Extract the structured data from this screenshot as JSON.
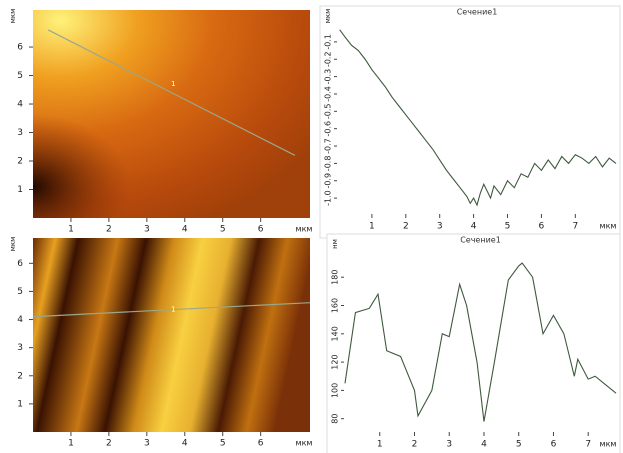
{
  "chart_data": [
    {
      "type": "heatmap",
      "x_label": "мкм",
      "y_label": "мкм",
      "xlim": [
        0,
        7.3
      ],
      "ylim": [
        0,
        7.3
      ],
      "xticks": [
        1,
        2,
        3,
        4,
        5,
        6
      ],
      "yticks": [
        1,
        2,
        3,
        4,
        5,
        6
      ],
      "section": {
        "x": [
          0.4,
          6.9
        ],
        "y": [
          6.6,
          2.2
        ],
        "label": "1",
        "label_x": 3.7,
        "label_y": 4.7,
        "color": "#9aa88a"
      }
    },
    {
      "type": "line",
      "title": "Сечение1",
      "x_label": "мкм",
      "y_label": "мкм",
      "xlim": [
        0,
        8.2
      ],
      "ylim": [
        -1.08,
        -0.02
      ],
      "xticks": [
        1,
        2,
        3,
        4,
        5,
        6,
        7
      ],
      "yticks": [
        {
          "value": -1,
          "label": "-1.0"
        },
        -0.9,
        -0.8,
        -0.7,
        -0.6,
        -0.5,
        -0.4,
        -0.3,
        -0.2,
        -0.1
      ],
      "color": "#3d5a3d",
      "x": [
        0.05,
        0.2,
        0.4,
        0.6,
        0.8,
        1.0,
        1.2,
        1.4,
        1.6,
        1.8,
        2.0,
        2.2,
        2.4,
        2.6,
        2.8,
        3.0,
        3.2,
        3.4,
        3.6,
        3.8,
        3.9,
        4.0,
        4.1,
        4.2,
        4.3,
        4.4,
        4.5,
        4.6,
        4.8,
        5.0,
        5.2,
        5.4,
        5.6,
        5.8,
        6.0,
        6.2,
        6.4,
        6.6,
        6.8,
        7.0,
        7.2,
        7.4,
        7.6,
        7.8,
        8.0,
        8.2
      ],
      "values": [
        -0.03,
        -0.07,
        -0.12,
        -0.15,
        -0.2,
        -0.26,
        -0.31,
        -0.36,
        -0.42,
        -0.47,
        -0.52,
        -0.57,
        -0.62,
        -0.67,
        -0.72,
        -0.78,
        -0.84,
        -0.89,
        -0.94,
        -0.99,
        -1.03,
        -1.0,
        -1.04,
        -0.97,
        -0.92,
        -0.96,
        -1.0,
        -0.93,
        -0.98,
        -0.9,
        -0.94,
        -0.86,
        -0.88,
        -0.8,
        -0.84,
        -0.78,
        -0.83,
        -0.76,
        -0.8,
        -0.75,
        -0.77,
        -0.8,
        -0.76,
        -0.82,
        -0.77,
        -0.8
      ]
    },
    {
      "type": "heatmap",
      "x_label": "мкм",
      "y_label": "мкм",
      "xlim": [
        0,
        7.3
      ],
      "ylim": [
        0,
        6.9
      ],
      "xticks": [
        1,
        2,
        3,
        4,
        5,
        6
      ],
      "yticks": [
        1,
        2,
        3,
        4,
        5,
        6
      ],
      "section": {
        "x": [
          0,
          7.3
        ],
        "y": [
          4.1,
          4.6
        ],
        "label": "1",
        "label_x": 3.7,
        "label_y": 4.35,
        "color": "#9aa88a"
      }
    },
    {
      "type": "line",
      "title": "Сечение1",
      "x_label": "мкм",
      "y_label": "нм",
      "xlim": [
        0,
        7.8
      ],
      "ylim": [
        72,
        195
      ],
      "xticks": [
        1,
        2,
        3,
        4,
        5,
        6,
        7
      ],
      "yticks": [
        80,
        100,
        120,
        140,
        160,
        180
      ],
      "color": "#3d5a3d",
      "x": [
        0,
        0.3,
        0.7,
        0.95,
        1.2,
        1.6,
        2.0,
        2.1,
        2.5,
        2.8,
        3.0,
        3.3,
        3.5,
        3.8,
        4.0,
        4.3,
        4.7,
        5.0,
        5.1,
        5.4,
        5.7,
        6.0,
        6.3,
        6.6,
        6.7,
        7.0,
        7.2,
        7.8
      ],
      "values": [
        105,
        155,
        158,
        168,
        128,
        124,
        100,
        82,
        100,
        140,
        138,
        175,
        160,
        120,
        78,
        120,
        178,
        188,
        190,
        180,
        140,
        153,
        140,
        110,
        122,
        108,
        110,
        98
      ]
    }
  ]
}
